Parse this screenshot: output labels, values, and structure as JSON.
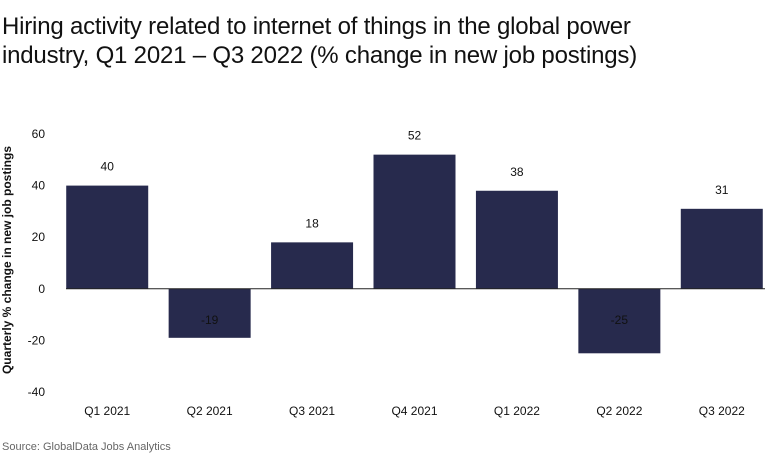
{
  "title": "Hiring activity related to internet of things in the global power industry, Q1 2021 – Q3 2022 (% change in new job postings)",
  "source": "Source: GlobalData Jobs Analytics",
  "colors": {
    "bar": "#272a4d",
    "text": "#111111",
    "axis": "#222222"
  },
  "chart_data": {
    "type": "bar",
    "categories": [
      "Q1 2021",
      "Q2 2021",
      "Q3 2021",
      "Q4 2021",
      "Q1 2022",
      "Q2 2022",
      "Q3 2022"
    ],
    "values": [
      40,
      -19,
      18,
      52,
      38,
      -25,
      31
    ],
    "data_labels": [
      "40",
      "-19",
      "18",
      "52",
      "38",
      "-25",
      "31"
    ],
    "ylabel": "Quarterly % change in new job postings",
    "xlabel": "",
    "ylim": [
      -40,
      60
    ],
    "yticks": [
      60,
      40,
      20,
      0,
      -20,
      -40
    ],
    "grid": false,
    "legend": "none"
  }
}
